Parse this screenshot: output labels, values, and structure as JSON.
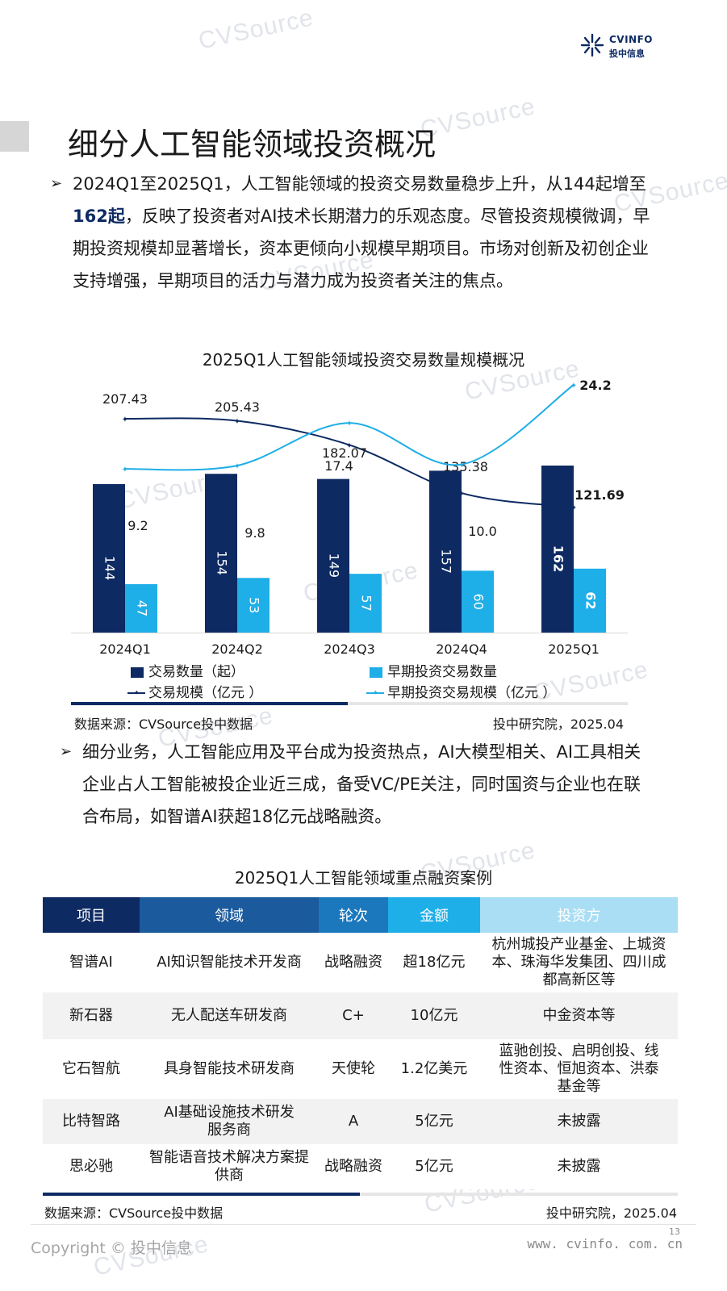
{
  "header": {
    "brand": "CVINFO",
    "brand_cn": "投中信息"
  },
  "page_title": "细分人工智能领域投资概况",
  "intro": {
    "bullet": "➢",
    "pre": "2024Q1至2025Q1，人工智能领域的投资交易数量稳步上升，从144起增至",
    "highlight": "162起",
    "post": "，反映了投资者对AI技术长期潜力的乐观态度。尽管投资规模微调，早期投资规模却显著增长，资本更倾向小规模早期项目。市场对创新及初创企业支持增强，早期项目的活力与潜力成为投资者关注的焦点。"
  },
  "chart1": {
    "title": "2025Q1人工智能领域投资交易数量规模概况",
    "source_left": "数据来源：CVSource投中数据",
    "source_right": "投中研究院，2025.04"
  },
  "chart_data": {
    "type": "bar",
    "categories": [
      "2024Q1",
      "2024Q2",
      "2024Q3",
      "2024Q4",
      "2025Q1"
    ],
    "series": [
      {
        "name": "交易数量（起）",
        "kind": "bar",
        "axis": "left",
        "color": "#0e2a63",
        "values": [
          144,
          154,
          149,
          157,
          162
        ]
      },
      {
        "name": "早期投资交易数量",
        "kind": "bar",
        "axis": "left",
        "color": "#1eaee8",
        "values": [
          47,
          53,
          57,
          60,
          62
        ]
      },
      {
        "name": "交易规模（亿元 ）",
        "kind": "line",
        "axis": "right",
        "color": "#0e2a63",
        "values": [
          207.43,
          205.43,
          182.07,
          135.38,
          121.69
        ]
      },
      {
        "name": "早期投资交易规模（亿元 ）",
        "kind": "line",
        "axis": "right2",
        "color": "#1eaee8",
        "values": [
          9.2,
          9.8,
          17.4,
          10.0,
          24.2
        ]
      }
    ],
    "value_labels": {
      "count": [
        "144",
        "154",
        "149",
        "157",
        "162"
      ],
      "early_count": [
        "47",
        "53",
        "57",
        "60",
        "62"
      ],
      "scale": [
        "207.43",
        "205.43",
        "182.07",
        "135.38",
        "121.69"
      ],
      "early_scale": [
        "9.2",
        "9.8",
        "17.4",
        "10.0",
        "24.2"
      ]
    },
    "ylim_left": [
      0,
      180
    ],
    "ylim_right": [
      0,
      280
    ],
    "ylim_right2": [
      -20,
      30
    ],
    "grid": false,
    "legend_position": "bottom"
  },
  "detail": {
    "bullet": "➢",
    "text": "细分业务，人工智能应用及平台成为投资热点，AI大模型相关、AI工具相关企业占人工智能被投企业近三成，备受VC/PE关注，同时国资与企业也在联合布局，如智谱AI获超18亿元战略融资。"
  },
  "table": {
    "title": "2025Q1人工智能领域重点融资案例",
    "headers": [
      "项目",
      "领域",
      "轮次",
      "金额",
      "投资方"
    ],
    "header_colors": [
      "#0e2a63",
      "#1b5a9c",
      "#1c78bd",
      "#1eaee8",
      "#a9def4"
    ],
    "rows": [
      [
        "智谱AI",
        "AI知识智能技术开发商",
        "战略融资",
        "超18亿元",
        "杭州城投产业基金、上城资本、珠海华发集团、四川成都高新区等"
      ],
      [
        "新石器",
        "无人配送车研发商",
        "C+",
        "10亿元",
        "中金资本等"
      ],
      [
        "它石智航",
        "具身智能技术研发商",
        "天使轮",
        "1.2亿美元",
        "蓝驰创投、启明创投、线性资本、恒旭资本、洪泰基金等"
      ],
      [
        "比特智路",
        "AI基础设施技术研发服务商",
        "A",
        "5亿元",
        "未披露"
      ],
      [
        "思必驰",
        "智能语音技术解决方案提供商",
        "战略融资",
        "5亿元",
        "未披露"
      ]
    ],
    "source_left": "数据来源：CVSource投中数据",
    "source_right": "投中研究院，2025.04"
  },
  "footer": {
    "copyright": "Copyright © 投中信息",
    "url": "www. cvinfo. com. cn",
    "page": "13"
  },
  "watermark": "CVSource"
}
